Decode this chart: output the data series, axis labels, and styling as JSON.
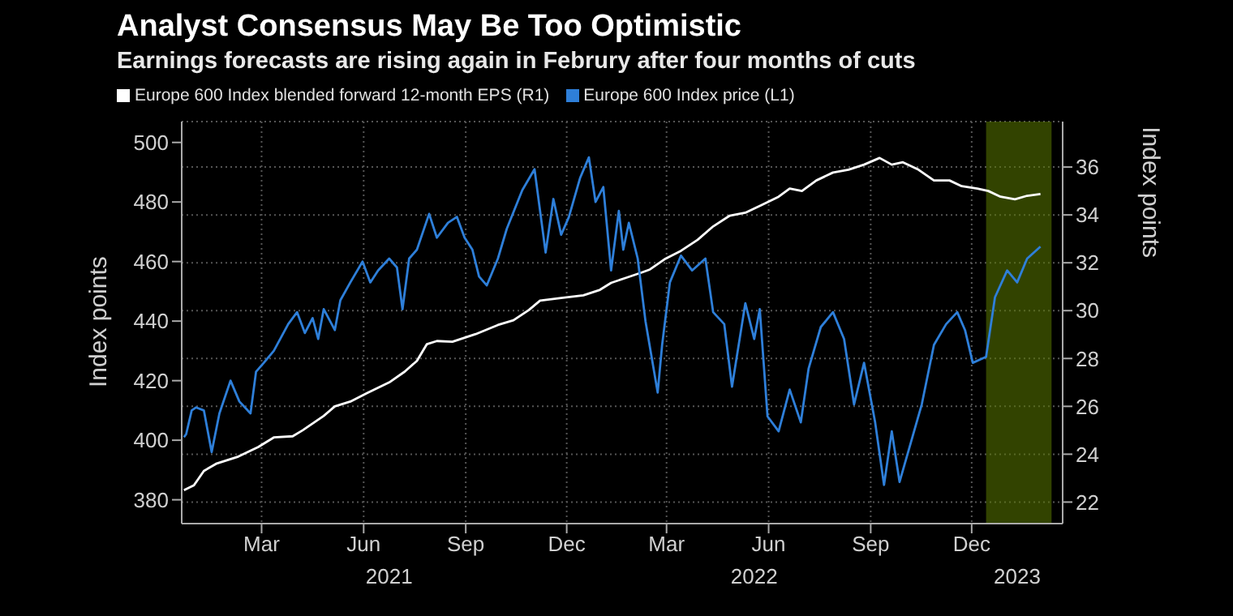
{
  "chart_data": {
    "type": "line",
    "title": "Analyst Consensus May Be Too Optimistic",
    "subtitle": "Earnings forecasts are rising again in Februry after four months of cuts",
    "ylabel": "Index points",
    "y2label": "Index points",
    "legend": "top left",
    "grid": true,
    "marker": "none",
    "line_style": "solid",
    "xlim": [
      "2021-01-02",
      "2023-03-07"
    ],
    "xticks": [
      {
        "value": "2021-03-15",
        "label": "Mar"
      },
      {
        "value": "2021-06-15",
        "label": "Jun"
      },
      {
        "value": "2021-09-15",
        "label": "Sep"
      },
      {
        "value": "2021-12-15",
        "label": "Dec"
      },
      {
        "value": "2022-03-15",
        "label": "Mar"
      },
      {
        "value": "2022-06-15",
        "label": "Jun"
      },
      {
        "value": "2022-09-15",
        "label": "Sep"
      },
      {
        "value": "2022-12-15",
        "label": "Dec"
      }
    ],
    "x2lim": [
      "2021-01-02",
      "2023-03-07"
    ],
    "x2ticks": [
      {
        "value": "2021-07-08",
        "label": "2021"
      },
      {
        "value": "2022-06-02",
        "label": "2022"
      },
      {
        "value": "2023-01-25",
        "label": "2023"
      }
    ],
    "ylim": [
      372,
      507
    ],
    "yticks": [
      380,
      400,
      420,
      440,
      460,
      480,
      500
    ],
    "y2lim": [
      21.1,
      37.9
    ],
    "y2ticks": [
      22,
      24,
      26,
      28,
      30,
      32,
      34,
      36
    ],
    "bands": [
      {
        "axis": "x",
        "from": "2022-12-28",
        "to": "2023-02-25",
        "color": "#5b7a00"
      }
    ],
    "series": [
      {
        "name": "Europe 600 Index blended forward 12-month EPS (R1)",
        "color": "#ffffff",
        "axis": "y2",
        "x": [
          "2021-01-04",
          "2021-01-13",
          "2021-01-22",
          "2021-02-02",
          "2021-02-22",
          "2021-03-12",
          "2021-03-26",
          "2021-04-12",
          "2021-04-21",
          "2021-05-10",
          "2021-05-20",
          "2021-06-03",
          "2021-06-18",
          "2021-07-08",
          "2021-07-22",
          "2021-08-02",
          "2021-08-11",
          "2021-08-20",
          "2021-09-03",
          "2021-09-24",
          "2021-10-14",
          "2021-10-28",
          "2021-11-11",
          "2021-11-21",
          "2021-12-10",
          "2021-12-30",
          "2022-01-14",
          "2022-01-24",
          "2022-02-07",
          "2022-02-21",
          "2022-02-28",
          "2022-03-14",
          "2022-03-28",
          "2022-04-12",
          "2022-04-26",
          "2022-05-11",
          "2022-05-25",
          "2022-06-09",
          "2022-06-24",
          "2022-07-04",
          "2022-07-15",
          "2022-07-28",
          "2022-08-12",
          "2022-08-26",
          "2022-09-09",
          "2022-09-23",
          "2022-10-04",
          "2022-10-14",
          "2022-10-28",
          "2022-11-11",
          "2022-11-25",
          "2022-12-06",
          "2022-12-20",
          "2022-12-30",
          "2023-01-10",
          "2023-01-23",
          "2023-02-03",
          "2023-02-15"
        ],
        "values": [
          22.5,
          22.7,
          23.3,
          23.6,
          23.9,
          24.3,
          24.7,
          24.75,
          25,
          25.6,
          26,
          26.2,
          26.55,
          27,
          27.45,
          27.9,
          28.6,
          28.73,
          28.7,
          29.02,
          29.4,
          29.6,
          30.03,
          30.42,
          30.53,
          30.64,
          30.87,
          31.16,
          31.38,
          31.6,
          31.72,
          32.17,
          32.5,
          32.96,
          33.52,
          33.97,
          34.09,
          34.42,
          34.76,
          35.1,
          35,
          35.44,
          35.77,
          35.89,
          36.1,
          36.38,
          36.1,
          36.2,
          35.89,
          35.44,
          35.44,
          35.2,
          35.1,
          35,
          34.76,
          34.65,
          34.8,
          34.87
        ]
      },
      {
        "name": "Europe 600 Index price (L1)",
        "color": "#2e7fd9",
        "x": [
          "2021-01-04",
          "2021-01-06",
          "2021-01-11",
          "2021-01-15",
          "2021-01-22",
          "2021-01-29",
          "2021-02-05",
          "2021-02-15",
          "2021-02-23",
          "2021-03-05",
          "2021-03-10",
          "2021-03-17",
          "2021-03-26",
          "2021-04-08",
          "2021-04-16",
          "2021-04-23",
          "2021-04-30",
          "2021-05-05",
          "2021-05-10",
          "2021-05-20",
          "2021-05-25",
          "2021-06-03",
          "2021-06-14",
          "2021-06-21",
          "2021-06-28",
          "2021-07-08",
          "2021-07-15",
          "2021-07-20",
          "2021-07-26",
          "2021-08-02",
          "2021-08-13",
          "2021-08-20",
          "2021-08-30",
          "2021-09-07",
          "2021-09-14",
          "2021-09-21",
          "2021-09-27",
          "2021-10-04",
          "2021-10-14",
          "2021-10-22",
          "2021-11-05",
          "2021-11-16",
          "2021-11-26",
          "2021-12-03",
          "2021-12-10",
          "2021-12-17",
          "2021-12-27",
          "2022-01-04",
          "2022-01-10",
          "2022-01-17",
          "2022-01-24",
          "2022-01-31",
          "2022-02-04",
          "2022-02-09",
          "2022-02-17",
          "2022-02-24",
          "2022-03-07",
          "2022-03-11",
          "2022-03-18",
          "2022-03-28",
          "2022-04-07",
          "2022-04-19",
          "2022-04-26",
          "2022-05-06",
          "2022-05-13",
          "2022-05-25",
          "2022-06-02",
          "2022-06-07",
          "2022-06-14",
          "2022-06-24",
          "2022-07-04",
          "2022-07-14",
          "2022-07-21",
          "2022-08-01",
          "2022-08-12",
          "2022-08-22",
          "2022-08-31",
          "2022-09-09",
          "2022-09-19",
          "2022-09-27",
          "2022-10-04",
          "2022-10-11",
          "2022-10-21",
          "2022-10-31",
          "2022-11-11",
          "2022-11-22",
          "2022-12-02",
          "2022-12-09",
          "2022-12-16",
          "2022-12-28",
          "2023-01-05",
          "2023-01-16",
          "2023-01-25",
          "2023-02-03",
          "2023-02-15"
        ],
        "values": [
          401,
          402,
          410,
          411,
          410,
          396,
          409,
          420,
          413,
          409,
          423,
          426,
          430,
          439,
          443,
          436,
          441,
          434,
          444,
          437,
          447,
          453,
          460,
          453,
          457,
          461,
          458,
          444,
          461,
          464,
          476,
          468,
          473,
          475,
          468,
          464,
          455,
          452,
          461,
          471,
          484,
          491,
          463,
          481,
          469,
          475,
          488,
          495,
          480,
          485,
          457,
          477,
          464,
          473,
          461,
          440,
          416,
          432,
          453,
          462,
          457,
          461,
          443,
          439,
          418,
          446,
          434,
          444,
          408,
          403,
          417,
          406,
          424,
          438,
          443,
          434,
          412,
          426,
          406,
          385,
          403,
          386,
          399,
          412,
          432,
          439,
          443,
          437,
          426,
          428,
          448,
          457,
          453,
          461,
          465
        ]
      }
    ]
  }
}
